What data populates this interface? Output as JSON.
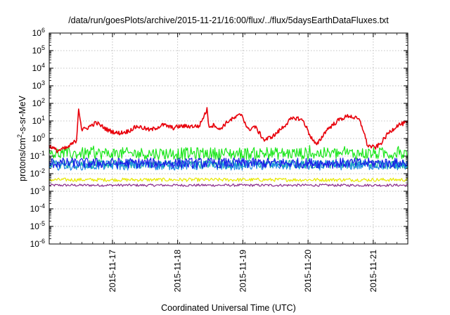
{
  "chart_data": {
    "type": "line",
    "title": "/data/run/goesPlots/archive/2015-11-21/16:00/flux/../flux/5daysEarthDataFluxes.txt",
    "xlabel": "Coordinated Universal Time (UTC)",
    "ylabel_parts": [
      "protons/cm",
      "2",
      "-s-sr-MeV"
    ],
    "y_scale": "log",
    "ylim": [
      1e-06,
      1000000.0
    ],
    "y_ticks": [
      {
        "base": "10",
        "exp": "-6"
      },
      {
        "base": "10",
        "exp": "-5"
      },
      {
        "base": "10",
        "exp": "-4"
      },
      {
        "base": "10",
        "exp": "-3"
      },
      {
        "base": "10",
        "exp": "-2"
      },
      {
        "base": "10",
        "exp": "-1"
      },
      {
        "base": "10",
        "exp": "0"
      },
      {
        "base": "10",
        "exp": "1"
      },
      {
        "base": "10",
        "exp": "2"
      },
      {
        "base": "10",
        "exp": "3"
      },
      {
        "base": "10",
        "exp": "4"
      },
      {
        "base": "10",
        "exp": "5"
      },
      {
        "base": "10",
        "exp": "6"
      }
    ],
    "x_ticks": [
      "2015-11-17",
      "2015-11-18",
      "2015-11-19",
      "2015-11-20",
      "2015-11-21"
    ],
    "xlim_days": [
      0,
      5.5
    ],
    "x_tick_positions_days": [
      0.97,
      1.97,
      2.97,
      3.97,
      4.97
    ],
    "grid": true,
    "series": [
      {
        "color": "#e8000b",
        "anchors_x": [
          0.0,
          0.12,
          0.28,
          0.42,
          0.45,
          0.5,
          0.58,
          0.72,
          0.9,
          1.05,
          1.2,
          1.35,
          1.55,
          1.75,
          1.9,
          2.0,
          2.15,
          2.3,
          2.42,
          2.45,
          2.55,
          2.6,
          2.75,
          2.85,
          2.95,
          3.05,
          3.15,
          3.3,
          3.45,
          3.6,
          3.7,
          3.8,
          3.9,
          4.0,
          4.1,
          4.25,
          4.45,
          4.6,
          4.75,
          4.82,
          4.88,
          5.0,
          5.08,
          5.2,
          5.35,
          5.5
        ],
        "anchors_y": [
          0.4,
          0.2,
          0.3,
          0.8,
          60,
          3,
          4,
          8,
          3,
          2,
          2.5,
          5,
          3,
          6,
          4,
          5,
          5,
          5,
          45,
          5,
          6,
          3,
          10,
          15,
          25,
          3,
          5,
          0.8,
          1.5,
          5,
          12,
          15,
          10,
          1.5,
          0.4,
          3,
          12,
          20,
          12,
          3,
          0.4,
          0.3,
          0.5,
          2,
          6,
          8
        ],
        "noise": 0.12,
        "n": 500
      },
      {
        "color": "#19e619",
        "level": 0.14,
        "noise": 0.35,
        "n": 420,
        "spike": 0.6
      },
      {
        "color": "#10b0a0",
        "level": 0.035,
        "noise": 0.25,
        "n": 420
      },
      {
        "color": "#1a1ae6",
        "level": 0.04,
        "noise": 0.3,
        "n": 420
      },
      {
        "color": "#1e88e5",
        "level": 0.03,
        "noise": 0.28,
        "n": 420
      },
      {
        "color": "#e8e800",
        "level": 0.0045,
        "noise": 0.1,
        "n": 420
      },
      {
        "color": "#8a2b8a",
        "level": 0.0022,
        "noise": 0.07,
        "n": 420
      }
    ]
  }
}
